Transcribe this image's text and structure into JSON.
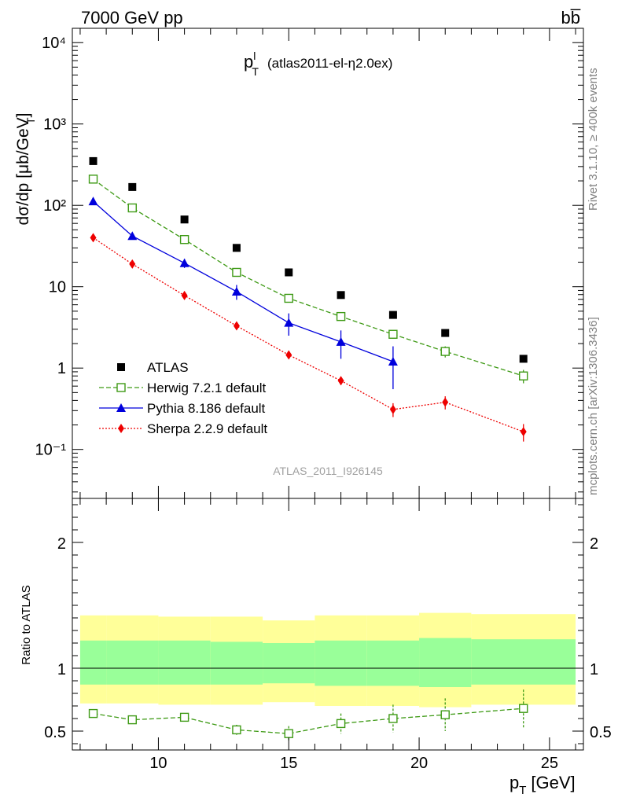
{
  "header": {
    "left": "7000 GeV pp",
    "right": "bb̅"
  },
  "side_labels": {
    "top": "Rivet 3.1.10, ≥ 400k events",
    "bottom": "mcplots.cern.ch [arXiv:1306.3436]"
  },
  "chart_data": [
    {
      "type": "scatter",
      "title": "p",
      "title_sup": "l",
      "title_sub": "T",
      "subtitle": "(atlas2011-el-η2.0ex)",
      "watermark": "ATLAS_2011_I926145",
      "ylabel": "dσ/dp  [μb/GeV]",
      "ylabel_sub": "T",
      "yscale": "log",
      "ylim": [
        0.025,
        15000
      ],
      "xlim": [
        6.7,
        26.3
      ],
      "ytick_labels": [
        "10⁻¹",
        "1",
        "10",
        "10²",
        "10³",
        "10⁴"
      ],
      "x": [
        7.5,
        9.0,
        11.0,
        13.0,
        15.0,
        17.0,
        19.0,
        21.0,
        24.0
      ],
      "series": [
        {
          "name": "ATLAS",
          "color": "#000000",
          "marker": "square-filled",
          "line": "none",
          "values": [
            350,
            168,
            67,
            30,
            15,
            7.9,
            4.5,
            2.7,
            1.3
          ],
          "errors": [
            0,
            0,
            0,
            0,
            0,
            0,
            0,
            0,
            0
          ]
        },
        {
          "name": "Herwig 7.2.1 default",
          "color": "#3e9a15",
          "marker": "square-open",
          "line": "dashed",
          "values": [
            210,
            93,
            38,
            15,
            7.2,
            4.3,
            2.6,
            1.6,
            0.8
          ],
          "errors": [
            0,
            0,
            0,
            0,
            0,
            0.2,
            0.3,
            0.25,
            0.15
          ]
        },
        {
          "name": "Pythia 8.186 default",
          "color": "#0000dc",
          "marker": "triangle",
          "line": "solid",
          "values": [
            112,
            42,
            19.5,
            8.7,
            3.6,
            2.1,
            1.2
          ],
          "errors": [
            0,
            0,
            2.5,
            1.8,
            1.1,
            0.8,
            0.65
          ]
        },
        {
          "name": "Sherpa 2.2.9 default",
          "color": "#ee0000",
          "marker": "diamond",
          "line": "dotted",
          "values": [
            40,
            19,
            7.8,
            3.3,
            1.45,
            0.7,
            0.31,
            0.38,
            0.165
          ],
          "errors": [
            0,
            0,
            0,
            0,
            0,
            0.08,
            0.06,
            0.07,
            0.04
          ]
        }
      ]
    },
    {
      "type": "scatter",
      "ylabel": "Ratio to ATLAS",
      "xlabel": "p",
      "xlabel_sub": "T",
      "xlabel_unit": "[GeV]",
      "ylim": [
        0.35,
        2.35
      ],
      "xlim": [
        6.7,
        26.3
      ],
      "yticks": [
        0.5,
        1,
        2
      ],
      "ytick_labels": [
        "0.5",
        "1",
        "2"
      ],
      "xticks": [
        10,
        15,
        20,
        25
      ],
      "xtick_labels": [
        "10",
        "15",
        "20",
        "25"
      ],
      "bands": {
        "edges": [
          7,
          8,
          10,
          12,
          14,
          16,
          18,
          20,
          22,
          26
        ],
        "yellow_hi": [
          1.42,
          1.42,
          1.41,
          1.41,
          1.38,
          1.42,
          1.42,
          1.44,
          1.43
        ],
        "yellow_lo": [
          0.72,
          0.72,
          0.71,
          0.71,
          0.73,
          0.7,
          0.7,
          0.69,
          0.71
        ],
        "green_hi": [
          1.22,
          1.22,
          1.22,
          1.21,
          1.2,
          1.22,
          1.22,
          1.24,
          1.23
        ],
        "green_lo": [
          0.87,
          0.87,
          0.87,
          0.87,
          0.88,
          0.86,
          0.86,
          0.85,
          0.87
        ],
        "yellow_color": "#ffff99",
        "green_color": "#99ff99"
      },
      "series": [
        {
          "name": "Herwig 7.2.1 default",
          "color": "#3e9a15",
          "marker": "square-open",
          "line": "dashed",
          "x": [
            7.5,
            9.0,
            11.0,
            13.0,
            15.0,
            17.0,
            19.0,
            21.0,
            24.0
          ],
          "values": [
            0.64,
            0.59,
            0.61,
            0.51,
            0.48,
            0.56,
            0.6,
            0.63,
            0.68
          ],
          "errors": [
            0.01,
            0.01,
            0.02,
            0.04,
            0.06,
            0.08,
            0.11,
            0.13,
            0.15
          ]
        }
      ]
    }
  ]
}
